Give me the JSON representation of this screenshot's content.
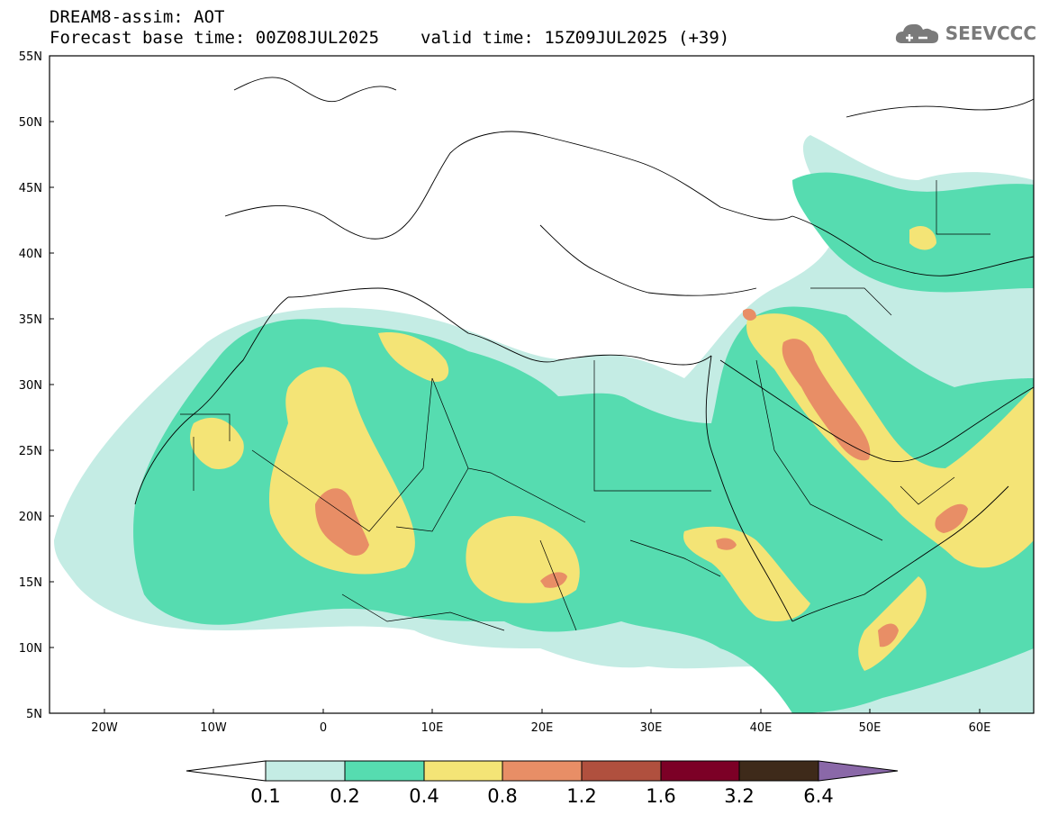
{
  "title": {
    "line1": "DREAM8-assim: AOT",
    "base_time": "Forecast base time: 00Z08JUL2025",
    "valid_time": "valid time: 15Z09JUL2025 (+39)"
  },
  "logo": {
    "text": "SEEVCCC",
    "icon": "cloud-icon"
  },
  "map": {
    "region": "North Africa, Europe and Middle East",
    "lon_range": [
      -25,
      65
    ],
    "lat_range": [
      5,
      55
    ],
    "lat_labels": [
      "55N",
      "50N",
      "45N",
      "40N",
      "35N",
      "30N",
      "25N",
      "20N",
      "15N",
      "10N",
      "5N"
    ],
    "lon_labels": [
      "20W",
      "10W",
      "0",
      "10E",
      "20E",
      "30E",
      "40E",
      "50E",
      "60E"
    ],
    "variable": "AOT"
  },
  "colorbar": {
    "levels": [
      "0.1",
      "0.2",
      "0.4",
      "0.8",
      "1.2",
      "1.6",
      "3.2",
      "6.4"
    ],
    "colors": [
      "#ffffff",
      "#c4ece4",
      "#56dcb0",
      "#f4e476",
      "#e88e66",
      "#b0503e",
      "#7c0026",
      "#3e2a1a",
      "#8a68a8"
    ]
  },
  "colors": {
    "low": "#c4ece4",
    "mid": "#56dcb0",
    "moderate": "#f4e476",
    "high": "#e88e66",
    "very_high": "#b0503e"
  }
}
